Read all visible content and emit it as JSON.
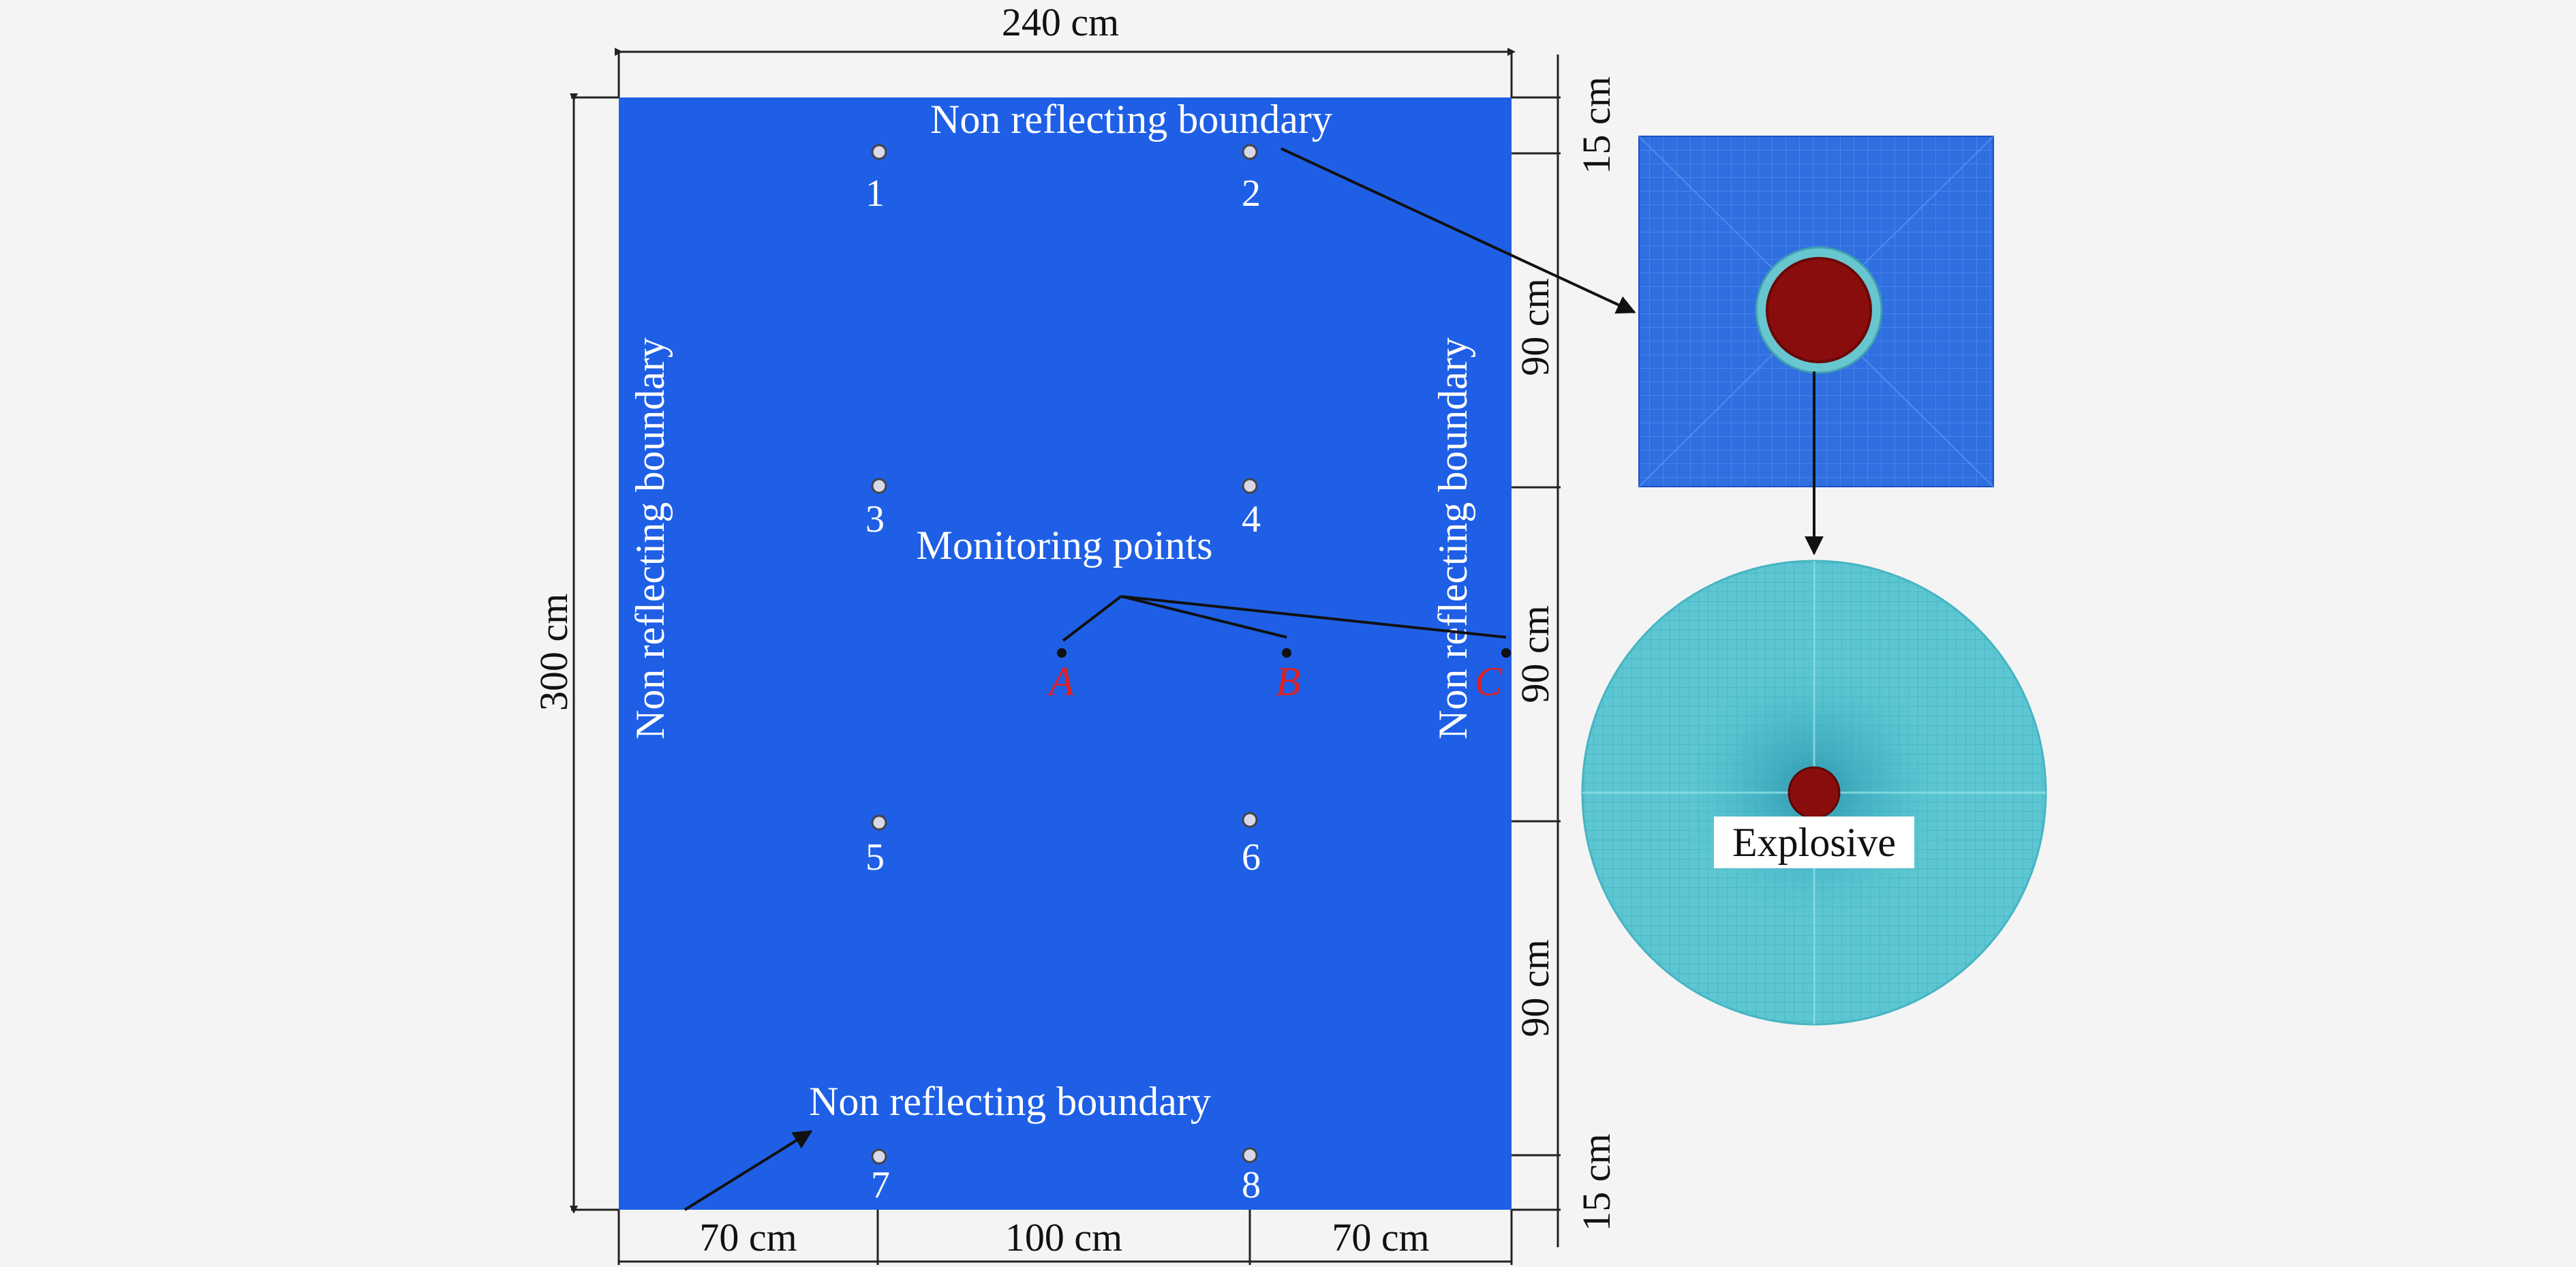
{
  "dimensions": {
    "width": "240 cm",
    "height": "300 cm",
    "top_offset": "15 cm",
    "row_spacing_1": "90 cm",
    "row_spacing_2": "90 cm",
    "row_spacing_3": "90 cm",
    "bottom_offset": "15 cm",
    "left_margin": "70 cm",
    "middle_span": "100 cm",
    "right_margin": "70 cm"
  },
  "boundaries": {
    "top": "Non reflecting boundary",
    "bottom": "Non reflecting boundary",
    "left": "Non reflecting boundary",
    "right": "Non reflecting boundary"
  },
  "charges": [
    "1",
    "2",
    "3",
    "4",
    "5",
    "6",
    "7",
    "8"
  ],
  "monitoring": {
    "title": "Monitoring points",
    "points": [
      "A",
      "B",
      "C"
    ]
  },
  "explosive_label": "Explosive",
  "colors": {
    "domain_fill": "#1e5fe6",
    "mesh_blue": "#2f6fe0",
    "mesh_cyan": "#5cc7d2",
    "explosive": "#8a0d0d",
    "monitor_label": "#e02020",
    "background": "#f4f4f4"
  }
}
